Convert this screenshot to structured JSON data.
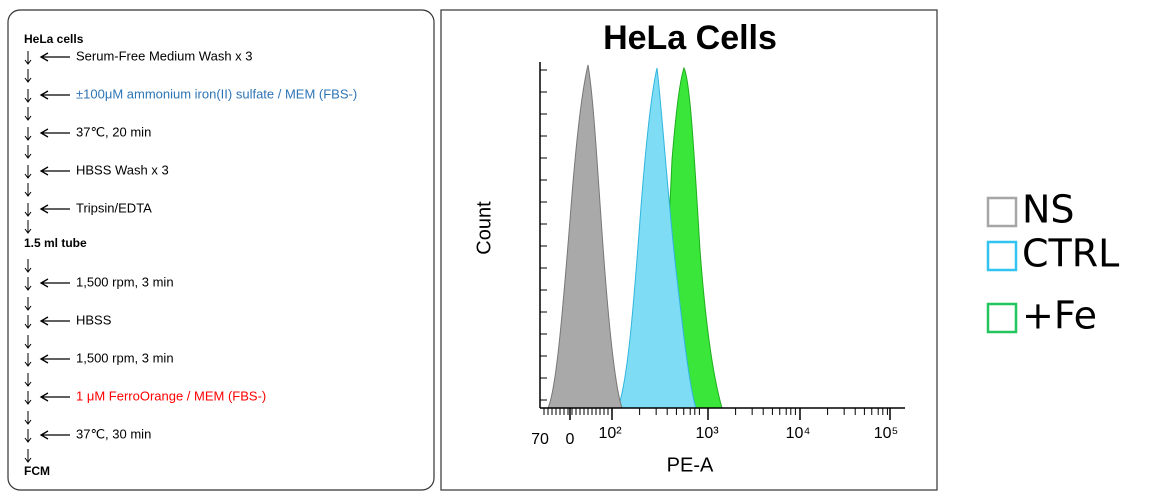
{
  "protocol": {
    "start": "HeLa cells",
    "steps_a": [
      {
        "text": "Serum-Free Medium Wash x 3",
        "color": "#000000"
      },
      {
        "text": "±100μM ammonium iron(II) sulfate / MEM (FBS-)",
        "color": "#2e75b6"
      },
      {
        "text": "37℃, 20 min",
        "color": "#000000"
      },
      {
        "text": "HBSS Wash x 3",
        "color": "#000000"
      },
      {
        "text": "Tripsin/EDTA",
        "color": "#000000"
      }
    ],
    "middle": "1.5 ml tube",
    "steps_b": [
      {
        "text": "1,500 rpm, 3 min",
        "color": "#000000"
      },
      {
        "text": "HBSS",
        "color": "#000000"
      },
      {
        "text": "1,500 rpm, 3 min",
        "color": "#000000"
      },
      {
        "text": "1 μM FerroOrange / MEM (FBS-)",
        "color": "#ff0000"
      },
      {
        "text": "37℃, 30 min",
        "color": "#000000"
      }
    ],
    "end": "FCM"
  },
  "histogram": {
    "title": "HeLa Cells",
    "y_label": "Count",
    "x_label": "PE-A",
    "x_tick_labels": [
      "70",
      "0",
      "10²",
      "10³",
      "10⁴",
      "10⁵"
    ]
  },
  "legend": [
    {
      "name": "NS",
      "color": "#a6a6a6"
    },
    {
      "name": "CTRL",
      "color": "#33c3f0"
    },
    {
      "name": "+Fe",
      "color": "#22c55e"
    }
  ]
}
